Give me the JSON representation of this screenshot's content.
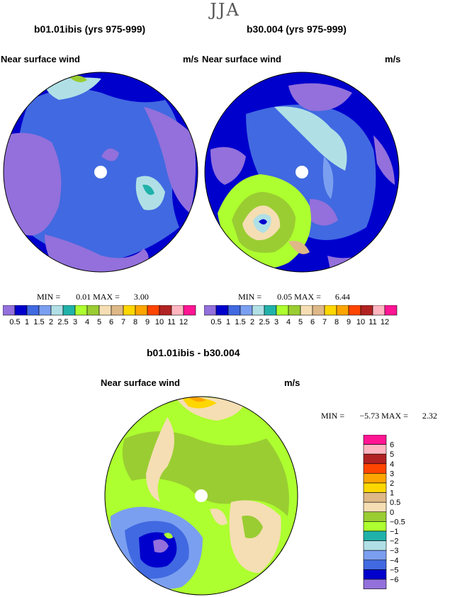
{
  "season": "JJA",
  "chart_data": [
    {
      "type": "heatmap",
      "projection": "polar-stereographic",
      "title": "b01.01ibis (yrs 975-999)",
      "field": "Near surface wind",
      "units": "m/s",
      "min_label": "MIN =",
      "min": "0.01",
      "max_label": "MAX =",
      "max": "3.00",
      "colorbar": {
        "orientation": "horizontal",
        "levels": [
          "0.5",
          "1",
          "1.5",
          "2",
          "2.5",
          "3",
          "4",
          "5",
          "6",
          "7",
          "8",
          "9",
          "10",
          "11",
          "12"
        ],
        "colors": [
          "#9370DB",
          "#0000CD",
          "#4169E1",
          "#7B9FF0",
          "#B0E0E6",
          "#20B2AA",
          "#ADFF2F",
          "#9ACD32",
          "#F5DEB3",
          "#DEB887",
          "#FFD700",
          "#FFA500",
          "#FF4500",
          "#B22222",
          "#FFB6C1",
          "#FF1493"
        ]
      }
    },
    {
      "type": "heatmap",
      "projection": "polar-stereographic",
      "title": "b30.004 (yrs 975-999)",
      "field": "Near surface wind",
      "units": "m/s",
      "min_label": "MIN =",
      "min": "0.05",
      "max_label": "MAX =",
      "max": "6.44",
      "colorbar": {
        "orientation": "horizontal",
        "levels": [
          "0.5",
          "1",
          "1.5",
          "2",
          "2.5",
          "3",
          "4",
          "5",
          "6",
          "7",
          "8",
          "9",
          "10",
          "11",
          "12"
        ],
        "colors": [
          "#9370DB",
          "#0000CD",
          "#4169E1",
          "#7B9FF0",
          "#B0E0E6",
          "#20B2AA",
          "#ADFF2F",
          "#9ACD32",
          "#F5DEB3",
          "#DEB887",
          "#FFD700",
          "#FFA500",
          "#FF4500",
          "#B22222",
          "#FFB6C1",
          "#FF1493"
        ]
      }
    },
    {
      "type": "heatmap",
      "projection": "polar-stereographic",
      "title": "b01.01ibis - b30.004",
      "field": "Near surface wind",
      "units": "m/s",
      "min_label": "MIN =",
      "min": "−5.73",
      "max_label": "MAX =",
      "max": "2.32",
      "colorbar": {
        "orientation": "vertical",
        "levels": [
          "6",
          "5",
          "4",
          "3",
          "2",
          "1",
          "0.5",
          "0",
          "−0.5",
          "−1",
          "−2",
          "−3",
          "−4",
          "−5",
          "−6"
        ],
        "colors": [
          "#FF1493",
          "#FFB6C1",
          "#B22222",
          "#FF4500",
          "#FFA500",
          "#FFD700",
          "#DEB887",
          "#F5DEB3",
          "#9ACD32",
          "#ADFF2F",
          "#20B2AA",
          "#B0E0E6",
          "#7B9FF0",
          "#4169E1",
          "#0000CD",
          "#9370DB"
        ]
      }
    }
  ]
}
